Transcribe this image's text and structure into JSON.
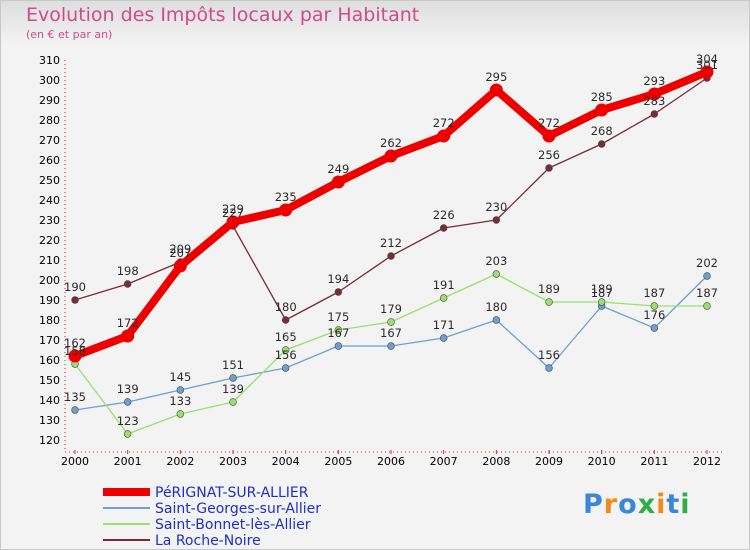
{
  "chart_data": {
    "type": "line",
    "title": "Evolution des Impôts locaux par Habitant",
    "subtitle": "(en € et par an)",
    "categories": [
      "2000",
      "2001",
      "2002",
      "2003",
      "2004",
      "2005",
      "2006",
      "2007",
      "2008",
      "2009",
      "2010",
      "2011",
      "2012"
    ],
    "ylim": [
      120,
      310
    ],
    "ystep": 10,
    "grid": false,
    "legend_position": "bottom",
    "series": [
      {
        "name": "PéRIGNAT-SUR-ALLIER",
        "color": "#ee0000",
        "values": [
          162,
          172,
          207,
          229,
          235,
          249,
          262,
          272,
          295,
          272,
          285,
          293,
          304
        ],
        "emphasis": true
      },
      {
        "name": "Saint-Georges-sur-Allier",
        "color": "#6f9fd0",
        "values": [
          135,
          139,
          145,
          151,
          156,
          167,
          167,
          171,
          180,
          156,
          187,
          176,
          202
        ]
      },
      {
        "name": "Saint-Bonnet-lès-Allier",
        "color": "#99e070",
        "values": [
          158,
          123,
          133,
          139,
          165,
          175,
          179,
          191,
          203,
          189,
          189,
          187,
          187
        ]
      },
      {
        "name": "La Roche-Noire",
        "color": "#7a2a38",
        "values": [
          190,
          198,
          209,
          227,
          180,
          194,
          212,
          226,
          230,
          256,
          268,
          283,
          301
        ]
      }
    ]
  },
  "logo": {
    "letters": [
      "P",
      "r",
      "o",
      "x",
      "i",
      "t",
      "i"
    ],
    "colors": [
      "#3a86d8",
      "#f08a1c",
      "#3a86d8",
      "#2dae4a",
      "#f08a1c",
      "#3a86d8",
      "#2dae4a"
    ]
  }
}
